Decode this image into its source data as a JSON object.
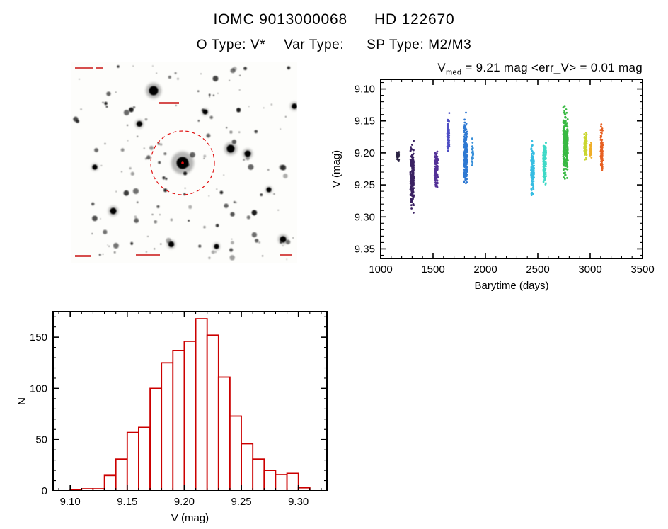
{
  "header": {
    "title_iomc": "IOMC 9013000068",
    "title_hd": "HD 122670",
    "otype_label": "O Type:",
    "otype_value": "V*",
    "vartype_label": "Var Type:",
    "vartype_value": "",
    "sptype_label": "SP Type:",
    "sptype_value": "M2/M3"
  },
  "finder": {
    "description": "grayscale star-field finding chart with target star circled",
    "aperture_color": "#e01010",
    "annotation_color": "#cc2222"
  },
  "chart_data": [
    {
      "id": "lightcurve",
      "type": "scatter",
      "title": {
        "v": "V",
        "vsub": "med",
        "rest": " = 9.21 mag <err_V> = 0.01 mag"
      },
      "xlabel": "Barytime (days)",
      "ylabel": "V (mag)",
      "xlim": [
        1000,
        3500
      ],
      "ylim_top": 9.085,
      "ylim_bottom": 9.365,
      "xticks": [
        1000,
        1500,
        2000,
        2500,
        3000,
        3500
      ],
      "yticks": [
        9.1,
        9.15,
        9.2,
        9.25,
        9.3,
        9.35
      ],
      "x_minor_step": 100,
      "y_minor_step": 0.01,
      "y_axis_inverted": true,
      "point_color_scheme": "rainbow-by-epoch",
      "clusters": [
        {
          "x": 1165,
          "xspread": 12,
          "y": 9.205,
          "yspread": 0.013,
          "n": 18,
          "color": "#191033"
        },
        {
          "x": 1300,
          "xspread": 16,
          "y": 9.235,
          "yspread": 0.065,
          "n": 230,
          "color": "#2b1055"
        },
        {
          "x": 1530,
          "xspread": 15,
          "y": 9.225,
          "yspread": 0.045,
          "n": 90,
          "color": "#45208f"
        },
        {
          "x": 1645,
          "xspread": 10,
          "y": 9.17,
          "yspread": 0.045,
          "n": 70,
          "color": "#4040c0"
        },
        {
          "x": 1810,
          "xspread": 15,
          "y": 9.2,
          "yspread": 0.07,
          "n": 210,
          "color": "#1e6ecf"
        },
        {
          "x": 1875,
          "xspread": 8,
          "y": 9.2,
          "yspread": 0.025,
          "n": 25,
          "color": "#2585d6"
        },
        {
          "x": 2450,
          "xspread": 14,
          "y": 9.225,
          "yspread": 0.05,
          "n": 115,
          "color": "#25b8e0"
        },
        {
          "x": 2565,
          "xspread": 14,
          "y": 9.215,
          "yspread": 0.045,
          "n": 115,
          "color": "#2fd6c3"
        },
        {
          "x": 2765,
          "xspread": 22,
          "y": 9.185,
          "yspread": 0.07,
          "n": 265,
          "color": "#28b432"
        },
        {
          "x": 2955,
          "xspread": 12,
          "y": 9.19,
          "yspread": 0.03,
          "n": 70,
          "color": "#c6d31f"
        },
        {
          "x": 3005,
          "xspread": 7,
          "y": 9.195,
          "yspread": 0.022,
          "n": 30,
          "color": "#efa816"
        },
        {
          "x": 3110,
          "xspread": 10,
          "y": 9.195,
          "yspread": 0.045,
          "n": 95,
          "color": "#e55310"
        }
      ]
    },
    {
      "id": "histogram",
      "type": "bar",
      "title": "",
      "xlabel": "V (mag)",
      "ylabel": "N",
      "xlim": [
        9.085,
        9.325
      ],
      "ylim": [
        0,
        175
      ],
      "xticks": [
        9.1,
        9.15,
        9.2,
        9.25,
        9.3
      ],
      "yticks": [
        0,
        50,
        100,
        150
      ],
      "x_minor_step": 0.01,
      "y_minor_step": 10,
      "bin_start": 9.1,
      "bin_width": 0.01,
      "values": [
        1,
        2,
        2,
        15,
        31,
        57,
        62,
        100,
        125,
        137,
        146,
        168,
        152,
        111,
        73,
        46,
        31,
        20,
        16,
        17,
        3
      ],
      "line_color": "#cc0000"
    }
  ]
}
